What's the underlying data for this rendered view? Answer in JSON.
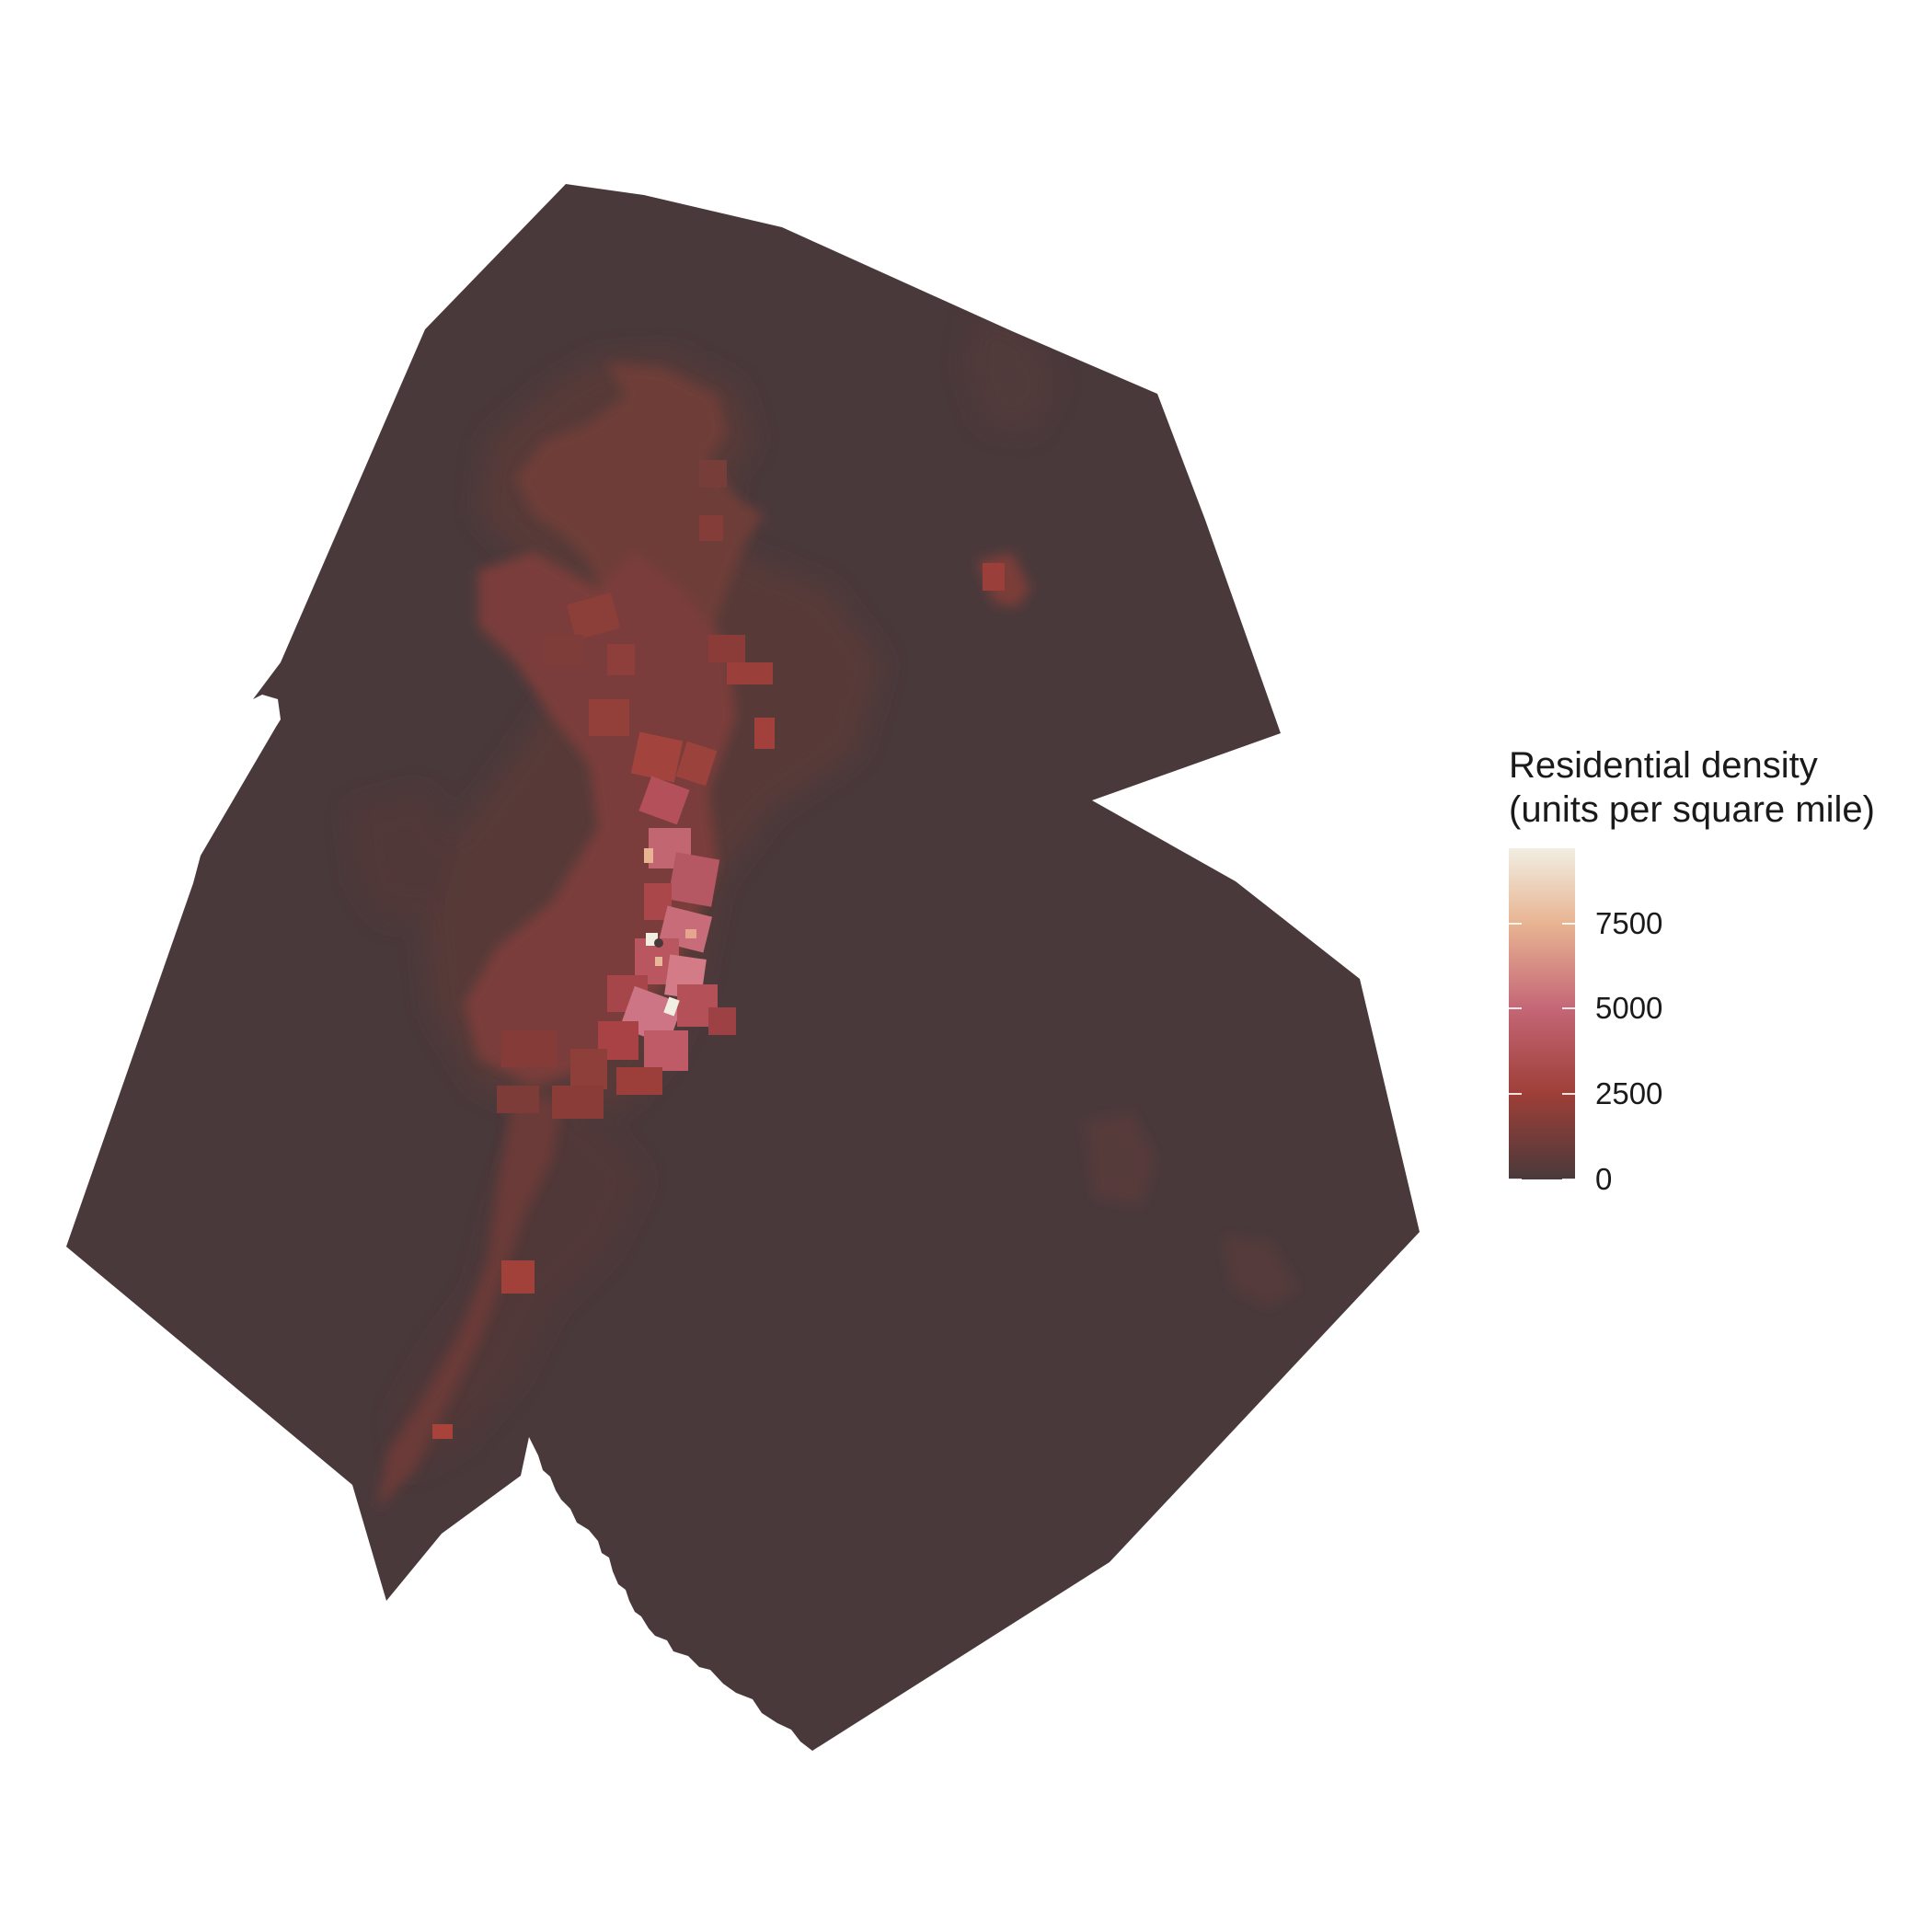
{
  "map": {
    "name": "residential-density-choropleth",
    "base_color": "#4A393B",
    "interior_boundary_color": "#463638"
  },
  "legend": {
    "title_line1": "Residential density",
    "title_line2": "(units per square mile)",
    "min": 0,
    "max": 9700,
    "ticks": [
      {
        "value": 0,
        "label": "0"
      },
      {
        "value": 2500,
        "label": "2500"
      },
      {
        "value": 5000,
        "label": "5000"
      },
      {
        "value": 7500,
        "label": "7500"
      }
    ],
    "color_stops": [
      {
        "value": 0,
        "color": "#4A393B"
      },
      {
        "value": 2500,
        "color": "#9E3F38"
      },
      {
        "value": 5000,
        "color": "#C46676"
      },
      {
        "value": 7500,
        "color": "#E8B492"
      },
      {
        "value": 9700,
        "color": "#F1EEE2"
      }
    ]
  }
}
